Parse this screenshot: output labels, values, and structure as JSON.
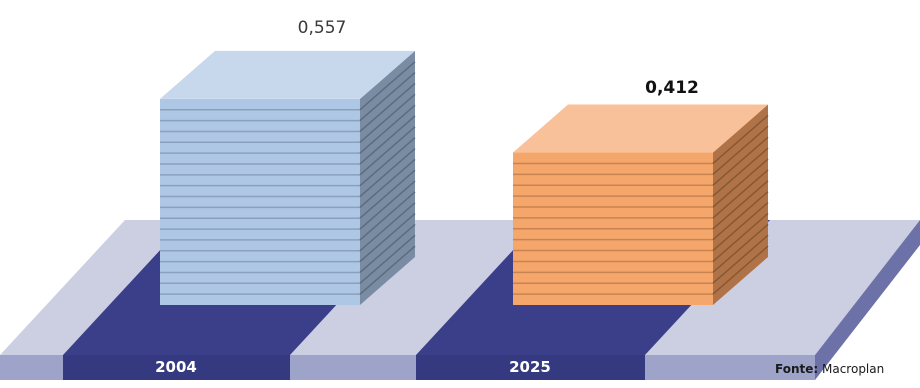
{
  "chart_data": {
    "type": "bar",
    "categories": [
      "2004",
      "2025"
    ],
    "values": [
      0.557,
      0.412
    ],
    "value_labels": [
      "0,557",
      "0,412"
    ],
    "colors": [
      "#a9c3e3",
      "#f4a062"
    ],
    "source_label": "Fonte:",
    "source_name": "Macroplan"
  }
}
